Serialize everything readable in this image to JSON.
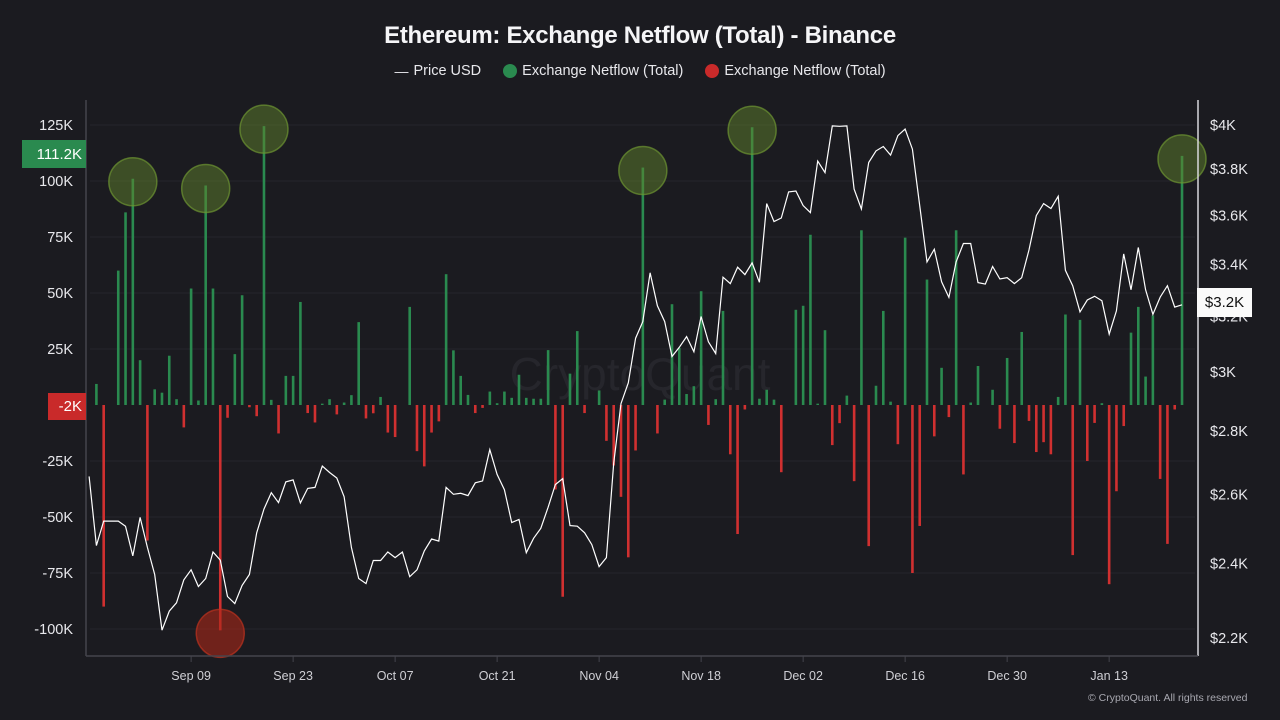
{
  "chart_data": {
    "type": "bar+line",
    "title": "Ethereum: Exchange Netflow (Total) - Binance",
    "legend": [
      {
        "label": "Price USD",
        "marker": "line",
        "color": "#ffffff"
      },
      {
        "label": "Exchange Netflow (Total)",
        "marker": "dot",
        "color": "#2a8a4f"
      },
      {
        "label": "Exchange Netflow (Total)",
        "marker": "dot",
        "color": "#c92a2a"
      }
    ],
    "legend_position": "top-center",
    "grid": true,
    "left_axis": {
      "ticks": [
        "125K",
        "100K",
        "75K",
        "50K",
        "25K",
        "-25K",
        "-50K",
        "-75K",
        "-100K"
      ],
      "tick_values": [
        125,
        100,
        75,
        50,
        25,
        -25,
        -50,
        -75,
        -100
      ],
      "range": [
        -112,
        137
      ]
    },
    "right_axis": {
      "scale": "log",
      "ticks": [
        "$4K",
        "$3.8K",
        "$3.6K",
        "$3.4K",
        "$3.2K",
        "$3K",
        "$2.8K",
        "$2.6K",
        "$2.4K",
        "$2.2K"
      ],
      "tick_values": [
        4000,
        3800,
        3600,
        3400,
        3200,
        3000,
        2800,
        2600,
        2400,
        2200
      ]
    },
    "x_ticks": [
      "Sep 09",
      "Sep 23",
      "Oct 07",
      "Oct 21",
      "Nov 04",
      "Nov 18",
      "Dec 02",
      "Dec 16",
      "Dec 30",
      "Jan 13"
    ],
    "last_netflow_label": "111.2K",
    "last_negative_label": "-2K",
    "last_price_label": "$3.2K",
    "colors": {
      "inflow": "#2a8a4f",
      "outflow": "#d03030",
      "price": "#ffffff",
      "highlight_green": "#5b7f2c",
      "highlight_red": "#a3281c"
    },
    "highlights": [
      {
        "date": "Sep 01",
        "type": "inflow"
      },
      {
        "date": "Sep 11",
        "type": "inflow"
      },
      {
        "date": "Sep 13",
        "type": "outflow"
      },
      {
        "date": "Sep 19",
        "type": "inflow"
      },
      {
        "date": "Nov 10",
        "type": "inflow"
      },
      {
        "date": "Nov 25",
        "type": "inflow"
      },
      {
        "date": "Jan 23",
        "type": "inflow"
      }
    ],
    "netflow": [
      [
        "Aug 27",
        9.4
      ],
      [
        "Aug 28",
        -90
      ],
      [
        "Aug 30",
        60
      ],
      [
        "Aug 31",
        86
      ],
      [
        "Sep 01",
        101
      ],
      [
        "Sep 02",
        20
      ],
      [
        "Sep 03",
        -60.5
      ],
      [
        "Sep 04",
        7
      ],
      [
        "Sep 05",
        5.5
      ],
      [
        "Sep 06",
        22
      ],
      [
        "Sep 07",
        2.6
      ],
      [
        "Sep 08",
        -10
      ],
      [
        "Sep 09",
        52
      ],
      [
        "Sep 10",
        2
      ],
      [
        "Sep 11",
        98
      ],
      [
        "Sep 12",
        52
      ],
      [
        "Sep 13",
        -100.6
      ],
      [
        "Sep 14",
        -5.7
      ],
      [
        "Sep 15",
        22.7
      ],
      [
        "Sep 16",
        49
      ],
      [
        "Sep 17",
        -1
      ],
      [
        "Sep 18",
        -5
      ],
      [
        "Sep 19",
        124.5
      ],
      [
        "Sep 20",
        2.3
      ],
      [
        "Sep 21",
        -12.7
      ],
      [
        "Sep 22",
        13
      ],
      [
        "Sep 23",
        13
      ],
      [
        "Sep 24",
        46
      ],
      [
        "Sep 25",
        -3.6
      ],
      [
        "Sep 26",
        -7.8
      ],
      [
        "Sep 27",
        0.6
      ],
      [
        "Sep 28",
        2.6
      ],
      [
        "Sep 29",
        -4.2
      ],
      [
        "Sep 30",
        1.1
      ],
      [
        "Oct 01",
        4.4
      ],
      [
        "Oct 02",
        37
      ],
      [
        "Oct 03",
        -6
      ],
      [
        "Oct 04",
        -3.7
      ],
      [
        "Oct 05",
        3.6
      ],
      [
        "Oct 06",
        -12.3
      ],
      [
        "Oct 07",
        -14.3
      ],
      [
        "Oct 09",
        43.8
      ],
      [
        "Oct 10",
        -20.6
      ],
      [
        "Oct 11",
        -27.4
      ],
      [
        "Oct 12",
        -12.3
      ],
      [
        "Oct 13",
        -7.3
      ],
      [
        "Oct 14",
        58.4
      ],
      [
        "Oct 15",
        24.4
      ],
      [
        "Oct 16",
        13
      ],
      [
        "Oct 17",
        4.5
      ],
      [
        "Oct 18",
        -3.6
      ],
      [
        "Oct 19",
        -1.3
      ],
      [
        "Oct 20",
        6
      ],
      [
        "Oct 21",
        0.8
      ],
      [
        "Oct 22",
        6
      ],
      [
        "Oct 23",
        3.2
      ],
      [
        "Oct 24",
        13.5
      ],
      [
        "Oct 25",
        3.2
      ],
      [
        "Oct 26",
        2.8
      ],
      [
        "Oct 27",
        2.8
      ],
      [
        "Oct 28",
        24.5
      ],
      [
        "Oct 29",
        -37.7
      ],
      [
        "Oct 30",
        -85.6
      ],
      [
        "Oct 31",
        14
      ],
      [
        "Nov 01",
        33
      ],
      [
        "Nov 02",
        -3.6
      ],
      [
        "Nov 04",
        6.5
      ],
      [
        "Nov 05",
        -16
      ],
      [
        "Nov 06",
        -27
      ],
      [
        "Nov 07",
        -41
      ],
      [
        "Nov 08",
        -68
      ],
      [
        "Nov 09",
        -20.3
      ],
      [
        "Nov 10",
        106
      ],
      [
        "Nov 12",
        -12.7
      ],
      [
        "Nov 13",
        2.4
      ],
      [
        "Nov 14",
        45
      ],
      [
        "Nov 15",
        25.5
      ],
      [
        "Nov 16",
        4.9
      ],
      [
        "Nov 17",
        8.4
      ],
      [
        "Nov 18",
        50.8
      ],
      [
        "Nov 19",
        -8.9
      ],
      [
        "Nov 20",
        2.6
      ],
      [
        "Nov 21",
        42
      ],
      [
        "Nov 22",
        -22
      ],
      [
        "Nov 23",
        -57.6
      ],
      [
        "Nov 24",
        -2
      ],
      [
        "Nov 25",
        124
      ],
      [
        "Nov 26",
        2.8
      ],
      [
        "Nov 27",
        6.8
      ],
      [
        "Nov 28",
        2.4
      ],
      [
        "Nov 29",
        -30
      ],
      [
        "Dec 01",
        42.5
      ],
      [
        "Dec 02",
        44.3
      ],
      [
        "Dec 03",
        76
      ],
      [
        "Dec 04",
        0.6
      ],
      [
        "Dec 05",
        33.4
      ],
      [
        "Dec 06",
        -17.9
      ],
      [
        "Dec 07",
        -8.1
      ],
      [
        "Dec 08",
        4.2
      ],
      [
        "Dec 09",
        -34
      ],
      [
        "Dec 10",
        78
      ],
      [
        "Dec 11",
        -63
      ],
      [
        "Dec 12",
        8.6
      ],
      [
        "Dec 13",
        42
      ],
      [
        "Dec 14",
        1.5
      ],
      [
        "Dec 15",
        -17.5
      ],
      [
        "Dec 16",
        74.7
      ],
      [
        "Dec 17",
        -75
      ],
      [
        "Dec 18",
        -54
      ],
      [
        "Dec 19",
        56
      ],
      [
        "Dec 20",
        -14
      ],
      [
        "Dec 21",
        16.6
      ],
      [
        "Dec 22",
        -5.4
      ],
      [
        "Dec 23",
        78
      ],
      [
        "Dec 24",
        -31
      ],
      [
        "Dec 25",
        1.1
      ],
      [
        "Dec 26",
        17.4
      ],
      [
        "Dec 28",
        6.8
      ],
      [
        "Dec 29",
        -10.6
      ],
      [
        "Dec 30",
        21
      ],
      [
        "Dec 31",
        -17
      ],
      [
        "Jan 01",
        32.6
      ],
      [
        "Jan 02",
        -7.1
      ],
      [
        "Jan 03",
        -21
      ],
      [
        "Jan 04",
        -16.6
      ],
      [
        "Jan 05",
        -22
      ],
      [
        "Jan 06",
        3.6
      ],
      [
        "Jan 07",
        40.4
      ],
      [
        "Jan 08",
        -67
      ],
      [
        "Jan 09",
        38
      ],
      [
        "Jan 10",
        -25
      ],
      [
        "Jan 11",
        -8
      ],
      [
        "Jan 12",
        0.8
      ],
      [
        "Jan 13",
        -80
      ],
      [
        "Jan 14",
        -38.5
      ],
      [
        "Jan 15",
        -9.4
      ],
      [
        "Jan 16",
        32.3
      ],
      [
        "Jan 17",
        43.8
      ],
      [
        "Jan 18",
        12.7
      ],
      [
        "Jan 19",
        40
      ],
      [
        "Jan 20",
        -33
      ],
      [
        "Jan 21",
        -62
      ],
      [
        "Jan 22",
        -2
      ],
      [
        "Jan 23",
        111.2
      ]
    ],
    "price": [
      [
        "Aug 26",
        2656
      ],
      [
        "Aug 27",
        2450
      ],
      [
        "Aug 28",
        2521
      ],
      [
        "Aug 29",
        2521
      ],
      [
        "Aug 30",
        2521
      ],
      [
        "Aug 31",
        2506
      ],
      [
        "Sep 01",
        2421
      ],
      [
        "Sep 02",
        2532
      ],
      [
        "Sep 03",
        2445
      ],
      [
        "Sep 04",
        2369
      ],
      [
        "Sep 05",
        2220
      ],
      [
        "Sep 06",
        2270
      ],
      [
        "Sep 07",
        2292
      ],
      [
        "Sep 08",
        2354
      ],
      [
        "Sep 09",
        2382
      ],
      [
        "Sep 10",
        2336
      ],
      [
        "Sep 11",
        2358
      ],
      [
        "Sep 12",
        2432
      ],
      [
        "Sep 13",
        2409
      ],
      [
        "Sep 14",
        2309
      ],
      [
        "Sep 15",
        2290
      ],
      [
        "Sep 16",
        2339
      ],
      [
        "Sep 17",
        2369
      ],
      [
        "Sep 18",
        2487
      ],
      [
        "Sep 19",
        2557
      ],
      [
        "Sep 20",
        2606
      ],
      [
        "Sep 21",
        2576
      ],
      [
        "Sep 22",
        2639
      ],
      [
        "Sep 23",
        2645
      ],
      [
        "Sep 24",
        2575
      ],
      [
        "Sep 25",
        2619
      ],
      [
        "Sep 26",
        2622
      ],
      [
        "Sep 27",
        2688
      ],
      [
        "Sep 28",
        2668
      ],
      [
        "Sep 29",
        2651
      ],
      [
        "Sep 30",
        2594
      ],
      [
        "Oct 01",
        2445
      ],
      [
        "Oct 02",
        2358
      ],
      [
        "Oct 03",
        2344
      ],
      [
        "Oct 04",
        2408
      ],
      [
        "Oct 05",
        2408
      ],
      [
        "Oct 06",
        2432
      ],
      [
        "Oct 07",
        2416
      ],
      [
        "Oct 08",
        2432
      ],
      [
        "Oct 09",
        2363
      ],
      [
        "Oct 10",
        2382
      ],
      [
        "Oct 11",
        2435
      ],
      [
        "Oct 12",
        2469
      ],
      [
        "Oct 13",
        2463
      ],
      [
        "Oct 14",
        2622
      ],
      [
        "Oct 15",
        2601
      ],
      [
        "Oct 16",
        2604
      ],
      [
        "Oct 17",
        2597
      ],
      [
        "Oct 18",
        2636
      ],
      [
        "Oct 19",
        2642
      ],
      [
        "Oct 20",
        2740
      ],
      [
        "Oct 21",
        2662
      ],
      [
        "Oct 22",
        2615
      ],
      [
        "Oct 23",
        2517
      ],
      [
        "Oct 24",
        2526
      ],
      [
        "Oct 25",
        2430
      ],
      [
        "Oct 26",
        2471
      ],
      [
        "Oct 27",
        2500
      ],
      [
        "Oct 28",
        2562
      ],
      [
        "Oct 29",
        2631
      ],
      [
        "Oct 30",
        2649
      ],
      [
        "Oct 31",
        2508
      ],
      [
        "Nov 01",
        2506
      ],
      [
        "Nov 02",
        2487
      ],
      [
        "Nov 03",
        2453
      ],
      [
        "Nov 04",
        2391
      ],
      [
        "Nov 05",
        2416
      ],
      [
        "Nov 06",
        2697
      ],
      [
        "Nov 07",
        2891
      ],
      [
        "Nov 08",
        2962
      ],
      [
        "Nov 09",
        3120
      ],
      [
        "Nov 10",
        3181
      ],
      [
        "Nov 11",
        3367
      ],
      [
        "Nov 12",
        3240
      ],
      [
        "Nov 13",
        3181
      ],
      [
        "Nov 14",
        3054
      ],
      [
        "Nov 15",
        3087
      ],
      [
        "Nov 16",
        3126
      ],
      [
        "Nov 17",
        3071
      ],
      [
        "Nov 18",
        3200
      ],
      [
        "Nov 19",
        3107
      ],
      [
        "Nov 20",
        3065
      ],
      [
        "Nov 21",
        3350
      ],
      [
        "Nov 22",
        3325
      ],
      [
        "Nov 23",
        3389
      ],
      [
        "Nov 24",
        3360
      ],
      [
        "Nov 25",
        3406
      ],
      [
        "Nov 26",
        3330
      ],
      [
        "Nov 27",
        3650
      ],
      [
        "Nov 28",
        3574
      ],
      [
        "Nov 29",
        3589
      ],
      [
        "Nov 30",
        3700
      ],
      [
        "Dec 01",
        3704
      ],
      [
        "Dec 02",
        3642
      ],
      [
        "Dec 03",
        3612
      ],
      [
        "Dec 04",
        3835
      ],
      [
        "Dec 05",
        3784
      ],
      [
        "Dec 06",
        3996
      ],
      [
        "Dec 07",
        3994
      ],
      [
        "Dec 08",
        3996
      ],
      [
        "Dec 09",
        3712
      ],
      [
        "Dec 10",
        3627
      ],
      [
        "Dec 11",
        3829
      ],
      [
        "Dec 12",
        3881
      ],
      [
        "Dec 13",
        3901
      ],
      [
        "Dec 14",
        3862
      ],
      [
        "Dec 15",
        3951
      ],
      [
        "Dec 16",
        3981
      ],
      [
        "Dec 17",
        3889
      ],
      [
        "Dec 18",
        3642
      ],
      [
        "Dec 19",
        3410
      ],
      [
        "Dec 20",
        3461
      ],
      [
        "Dec 21",
        3332
      ],
      [
        "Dec 22",
        3272
      ],
      [
        "Dec 23",
        3410
      ],
      [
        "Dec 24",
        3484
      ],
      [
        "Dec 25",
        3484
      ],
      [
        "Dec 26",
        3329
      ],
      [
        "Dec 27",
        3323
      ],
      [
        "Dec 28",
        3392
      ],
      [
        "Dec 29",
        3343
      ],
      [
        "Dec 30",
        3348
      ],
      [
        "Dec 31",
        3325
      ],
      [
        "Jan 01",
        3348
      ],
      [
        "Jan 02",
        3458
      ],
      [
        "Jan 03",
        3599
      ],
      [
        "Jan 04",
        3650
      ],
      [
        "Jan 05",
        3629
      ],
      [
        "Jan 06",
        3681
      ],
      [
        "Jan 07",
        3377
      ],
      [
        "Jan 08",
        3317
      ],
      [
        "Jan 09",
        3217
      ],
      [
        "Jan 10",
        3262
      ],
      [
        "Jan 11",
        3276
      ],
      [
        "Jan 12",
        3259
      ],
      [
        "Jan 13",
        3135
      ],
      [
        "Jan 14",
        3221
      ],
      [
        "Jan 15",
        3442
      ],
      [
        "Jan 16",
        3301
      ],
      [
        "Jan 17",
        3468
      ],
      [
        "Jan 18",
        3301
      ],
      [
        "Jan 19",
        3208
      ],
      [
        "Jan 20",
        3273
      ],
      [
        "Jan 21",
        3317
      ],
      [
        "Jan 22",
        3235
      ],
      [
        "Jan 23",
        3244
      ]
    ]
  },
  "watermark": "CryptoQuant",
  "copyright": "© CryptoQuant. All rights reserved"
}
